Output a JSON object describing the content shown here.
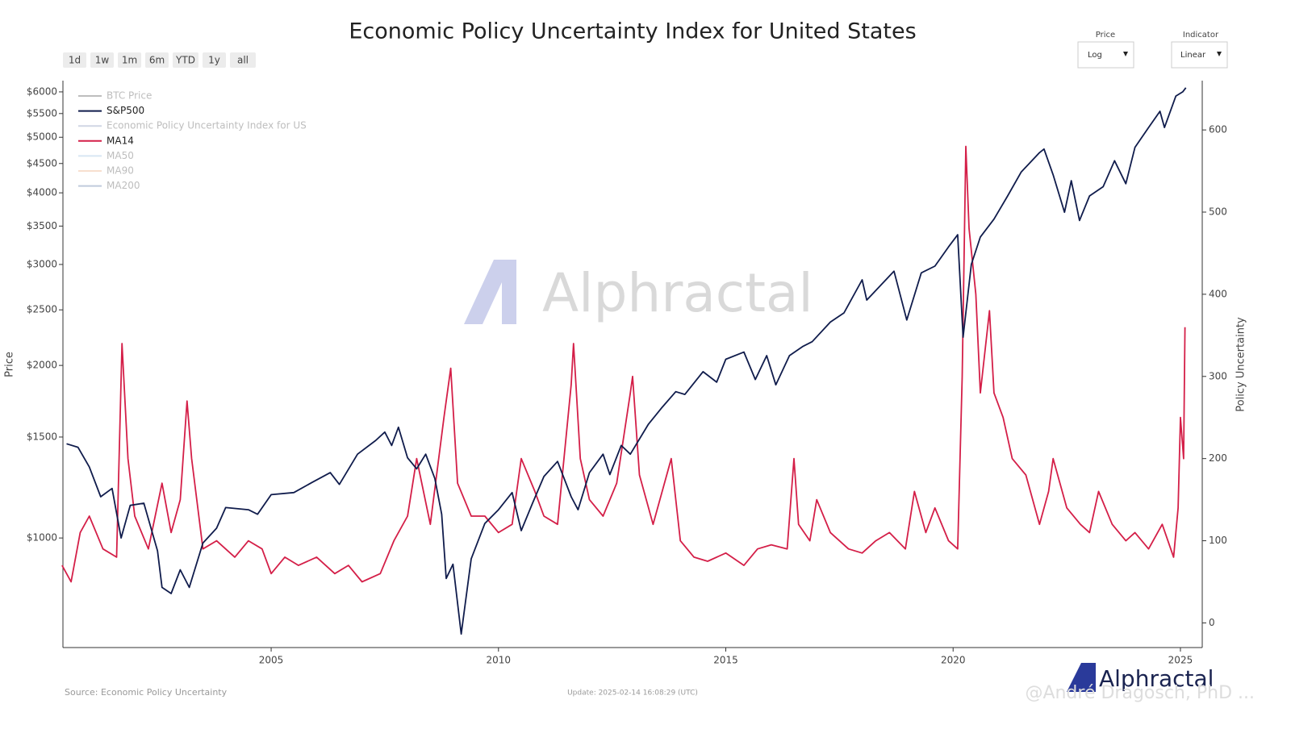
{
  "chart_data": {
    "type": "line",
    "title": "Economic Policy Uncertainty Index for United States",
    "y_label": "Price",
    "y2_label": "Policy Uncertainty",
    "source": "Source: Economic Policy Uncertainty",
    "update": "Update: 2025-02-14 16:08:29 (UTC)",
    "watermark": "Alphractal",
    "credit": "@André Dragosch, PhD ...",
    "ylog": true,
    "legend": "top-left",
    "xlim": [
      2000.42,
      2025.48
    ],
    "xticks": [
      2005,
      2010,
      2015,
      2020,
      2025
    ],
    "ylim": [
      644,
      6277
    ],
    "yticks": [
      {
        "value": 1000,
        "label": "$1000"
      },
      {
        "value": 1500,
        "label": "$1500"
      },
      {
        "value": 2000,
        "label": "$2000"
      },
      {
        "value": 2500,
        "label": "$2500"
      },
      {
        "value": 3000,
        "label": "$3000"
      },
      {
        "value": 3500,
        "label": "$3500"
      },
      {
        "value": 4000,
        "label": "$4000"
      },
      {
        "value": 4500,
        "label": "$4500"
      },
      {
        "value": 5000,
        "label": "$5000"
      },
      {
        "value": 5500,
        "label": "$5500"
      },
      {
        "value": 6000,
        "label": "$6000"
      }
    ],
    "y2lim": [
      -30,
      660
    ],
    "y2ticks": [
      0,
      100,
      200,
      300,
      400,
      500,
      600
    ],
    "series": [
      {
        "name": "S&P500",
        "color": "#101c4c",
        "axis": "y",
        "x": [
          2000.5,
          2000.75,
          2001.0,
          2001.25,
          2001.5,
          2001.7,
          2001.9,
          2002.2,
          2002.5,
          2002.6,
          2002.8,
          2003.0,
          2003.2,
          2003.5,
          2003.8,
          2004.0,
          2004.5,
          2004.7,
          2005.0,
          2005.5,
          2005.9,
          2006.3,
          2006.5,
          2006.9,
          2007.3,
          2007.5,
          2007.65,
          2007.8,
          2008.0,
          2008.2,
          2008.4,
          2008.6,
          2008.75,
          2008.85,
          2009.0,
          2009.18,
          2009.4,
          2009.7,
          2010.0,
          2010.3,
          2010.5,
          2010.75,
          2011.0,
          2011.3,
          2011.6,
          2011.75,
          2012.0,
          2012.3,
          2012.45,
          2012.7,
          2012.9,
          2013.3,
          2013.6,
          2013.9,
          2014.1,
          2014.5,
          2014.8,
          2015.0,
          2015.4,
          2015.65,
          2015.9,
          2016.1,
          2016.4,
          2016.7,
          2016.9,
          2017.3,
          2017.6,
          2018.0,
          2018.1,
          2018.7,
          2018.98,
          2019.3,
          2019.6,
          2019.9,
          2020.1,
          2020.22,
          2020.4,
          2020.6,
          2020.9,
          2021.2,
          2021.5,
          2021.9,
          2022.0,
          2022.2,
          2022.45,
          2022.6,
          2022.78,
          2023.0,
          2023.3,
          2023.55,
          2023.8,
          2024.0,
          2024.3,
          2024.55,
          2024.65,
          2024.9,
          2025.05,
          2025.12
        ],
        "values": [
          1460,
          1440,
          1330,
          1180,
          1220,
          1000,
          1140,
          1150,
          950,
          820,
          800,
          880,
          820,
          980,
          1040,
          1130,
          1120,
          1100,
          1190,
          1200,
          1250,
          1300,
          1240,
          1400,
          1480,
          1530,
          1450,
          1560,
          1380,
          1320,
          1400,
          1270,
          1100,
          850,
          900,
          680,
          920,
          1060,
          1120,
          1200,
          1030,
          1150,
          1280,
          1360,
          1180,
          1120,
          1300,
          1400,
          1290,
          1450,
          1400,
          1580,
          1690,
          1800,
          1780,
          1950,
          1870,
          2050,
          2110,
          1890,
          2080,
          1850,
          2080,
          2160,
          2200,
          2380,
          2470,
          2820,
          2600,
          2920,
          2400,
          2900,
          2980,
          3220,
          3380,
          2240,
          3000,
          3350,
          3600,
          3950,
          4350,
          4700,
          4770,
          4300,
          3700,
          4200,
          3580,
          3950,
          4100,
          4550,
          4150,
          4800,
          5200,
          5550,
          5200,
          5900,
          6000,
          6100
        ]
      },
      {
        "name": "MA14",
        "color": "#d41f48",
        "axis": "y2",
        "x": [
          2000.4,
          2000.6,
          2000.8,
          2001.0,
          2001.3,
          2001.6,
          2001.72,
          2001.85,
          2002.0,
          2002.3,
          2002.6,
          2002.8,
          2003.0,
          2003.15,
          2003.25,
          2003.5,
          2003.8,
          2004.2,
          2004.5,
          2004.8,
          2005.0,
          2005.3,
          2005.6,
          2006.0,
          2006.4,
          2006.7,
          2007.0,
          2007.4,
          2007.7,
          2008.0,
          2008.2,
          2008.5,
          2008.8,
          2008.95,
          2009.1,
          2009.4,
          2009.7,
          2010.0,
          2010.3,
          2010.5,
          2010.8,
          2011.0,
          2011.3,
          2011.6,
          2011.65,
          2011.8,
          2012.0,
          2012.3,
          2012.6,
          2012.9,
          2012.95,
          2013.1,
          2013.4,
          2013.8,
          2014.0,
          2014.3,
          2014.6,
          2015.0,
          2015.4,
          2015.7,
          2016.0,
          2016.35,
          2016.5,
          2016.6,
          2016.85,
          2017.0,
          2017.3,
          2017.7,
          2018.0,
          2018.3,
          2018.6,
          2018.95,
          2019.15,
          2019.4,
          2019.6,
          2019.9,
          2020.1,
          2020.2,
          2020.28,
          2020.35,
          2020.5,
          2020.6,
          2020.8,
          2020.9,
          2021.1,
          2021.3,
          2021.6,
          2021.9,
          2022.1,
          2022.2,
          2022.5,
          2022.8,
          2023.0,
          2023.2,
          2023.5,
          2023.8,
          2024.0,
          2024.3,
          2024.6,
          2024.85,
          2024.95,
          2025.0,
          2025.07,
          2025.1
        ],
        "values": [
          70,
          50,
          110,
          130,
          90,
          80,
          340,
          200,
          130,
          90,
          170,
          110,
          150,
          270,
          200,
          90,
          100,
          80,
          100,
          90,
          60,
          80,
          70,
          80,
          60,
          70,
          50,
          60,
          100,
          130,
          200,
          120,
          250,
          310,
          170,
          130,
          130,
          110,
          120,
          200,
          160,
          130,
          120,
          290,
          340,
          200,
          150,
          130,
          170,
          280,
          300,
          180,
          120,
          200,
          100,
          80,
          75,
          85,
          70,
          90,
          95,
          90,
          200,
          120,
          100,
          150,
          110,
          90,
          85,
          100,
          110,
          90,
          160,
          110,
          140,
          100,
          90,
          300,
          580,
          480,
          400,
          280,
          380,
          280,
          250,
          200,
          180,
          120,
          160,
          200,
          140,
          120,
          110,
          160,
          120,
          100,
          110,
          90,
          120,
          80,
          140,
          250,
          200,
          360
        ]
      }
    ],
    "hidden_series": [
      {
        "name": "BTC Price",
        "color": "#8a8a8a"
      },
      {
        "name": "Economic Policy Uncertainty Index for US",
        "color": "#a9b6cf"
      },
      {
        "name": "MA50",
        "color": "#b9d3ea"
      },
      {
        "name": "MA90",
        "color": "#f2c6a8"
      },
      {
        "name": "MA200",
        "color": "#8ea0c0"
      }
    ]
  },
  "controls": {
    "ranges": [
      "1d",
      "1w",
      "1m",
      "6m",
      "YTD",
      "1y",
      "all"
    ],
    "price_label": "Price",
    "price_value": "Log",
    "indicator_label": "Indicator",
    "indicator_value": "Linear"
  }
}
